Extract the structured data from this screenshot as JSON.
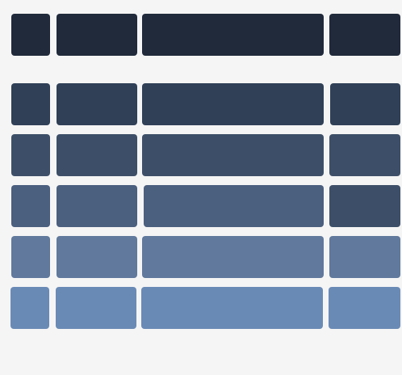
{
  "diagram": {
    "background": "#f5f5f5",
    "rows": [
      {
        "colors": [
          "#202a3b",
          "#202a3b",
          "#202a3b",
          "#202a3b"
        ]
      },
      {
        "colors": [
          "#2f4057",
          "#2f4057",
          "#2f4057",
          "#2f4057"
        ]
      },
      {
        "colors": [
          "#3d4f68",
          "#3d4f68",
          "#3d4f68",
          "#3d4f68"
        ]
      },
      {
        "colors": [
          "#4b5f7f",
          "#4b5f7f",
          "#4b5f7f",
          "#3d4f68"
        ]
      },
      {
        "colors": [
          "#60799c",
          "#60799c",
          "#60799c",
          "#60799c"
        ]
      },
      {
        "colors": [
          "#6a8ab6",
          "#6a8ab6",
          "#6a8ab6",
          "#6a8ab6"
        ]
      }
    ]
  }
}
